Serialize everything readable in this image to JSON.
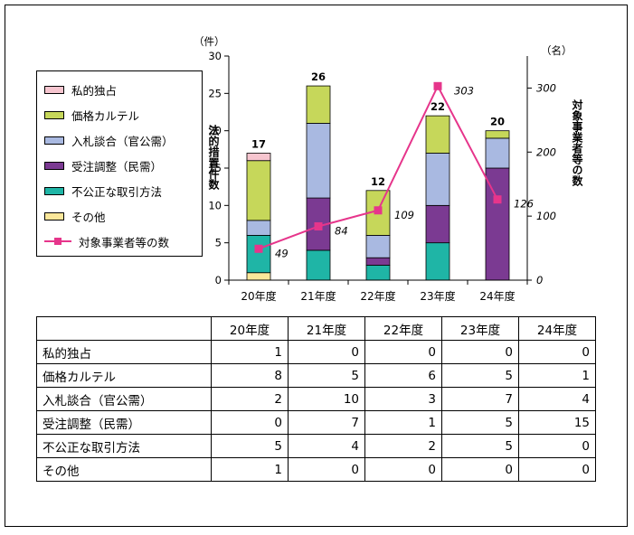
{
  "chart_data": {
    "type": "bar",
    "stacked": true,
    "categories": [
      "20年度",
      "21年度",
      "22年度",
      "23年度",
      "24年度"
    ],
    "series": [
      {
        "name": "その他",
        "values": [
          1,
          0,
          0,
          0,
          0
        ],
        "color": "#fbe79a"
      },
      {
        "name": "不公正な取引方法",
        "values": [
          5,
          4,
          2,
          5,
          0
        ],
        "color": "#1fb5a6"
      },
      {
        "name": "受注調整（民需）",
        "values": [
          0,
          7,
          1,
          5,
          15
        ],
        "color": "#7b3a92"
      },
      {
        "name": "入札談合（官公需）",
        "values": [
          2,
          10,
          3,
          7,
          4
        ],
        "color": "#a9b9e1"
      },
      {
        "name": "価格カルテル",
        "values": [
          8,
          5,
          6,
          5,
          1
        ],
        "color": "#c6d75a"
      },
      {
        "name": "私的独占",
        "values": [
          1,
          0,
          0,
          0,
          0
        ],
        "color": "#f6c5cf"
      }
    ],
    "totals": [
      "17",
      "26",
      "12",
      "22",
      "20"
    ],
    "line": {
      "name": "対象事業者等の数",
      "values": [
        49,
        84,
        109,
        303,
        126
      ],
      "labels": [
        "49",
        "84",
        "109",
        "303",
        "126"
      ],
      "color": "#e6358b"
    },
    "y_left": {
      "unit": "（件）",
      "label": "法的措置件数",
      "ticks": [
        "0",
        "5",
        "10",
        "15",
        "20",
        "25",
        "30"
      ],
      "range": [
        0,
        30
      ]
    },
    "y_right": {
      "unit": "（名）",
      "label": "対象事業者等の数",
      "ticks": [
        "0",
        "100",
        "200",
        "300"
      ],
      "range": [
        0,
        350
      ]
    },
    "legend_position": "left"
  },
  "legend": [
    {
      "label": "私的独占",
      "color": "#f6c5cf"
    },
    {
      "label": "価格カルテル",
      "color": "#c6d75a"
    },
    {
      "label": "入札談合（官公需）",
      "color": "#a9b9e1"
    },
    {
      "label": "受注調整（民需）",
      "color": "#7b3a92"
    },
    {
      "label": "不公正な取引方法",
      "color": "#1fb5a6"
    },
    {
      "label": "その他",
      "color": "#fbe79a"
    },
    {
      "label": "対象事業者等の数",
      "type": "line"
    }
  ],
  "table": {
    "headers": [
      "20年度",
      "21年度",
      "22年度",
      "23年度",
      "24年度"
    ],
    "rows": [
      {
        "label": "私的独占",
        "values": [
          "1",
          "0",
          "0",
          "0",
          "0"
        ]
      },
      {
        "label": "価格カルテル",
        "values": [
          "8",
          "5",
          "6",
          "5",
          "1"
        ]
      },
      {
        "label": "入札談合（官公需）",
        "values": [
          "2",
          "10",
          "3",
          "7",
          "4"
        ]
      },
      {
        "label": "受注調整（民需）",
        "values": [
          "0",
          "7",
          "1",
          "5",
          "15"
        ]
      },
      {
        "label": "不公正な取引方法",
        "values": [
          "5",
          "4",
          "2",
          "5",
          "0"
        ]
      },
      {
        "label": "その他",
        "values": [
          "1",
          "0",
          "0",
          "0",
          "0"
        ]
      }
    ]
  }
}
